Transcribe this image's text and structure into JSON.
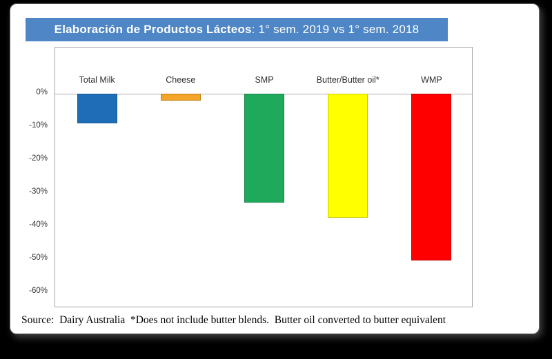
{
  "title": {
    "bold": "Elaboración de Productos Lácteos",
    "regular": ": 1° sem. 2019 vs 1° sem. 2018"
  },
  "source_note": "Source:  Dairy Australia  *Does not include butter blends.  Butter oil converted to butter equivalent",
  "colors": {
    "banner": "#4f86c6",
    "panel_bg": "#ffffff",
    "page_bg": "#000000"
  },
  "chart_data": {
    "type": "bar",
    "title": "Elaboración de Productos Lácteos: 1° sem. 2019 vs 1° sem. 2018",
    "categories": [
      "Total Milk",
      "Cheese",
      "SMP",
      "Butter/Butter oil*",
      "WMP"
    ],
    "values": [
      -9,
      -2,
      -33,
      -37.5,
      -50.5
    ],
    "value_format": "percent",
    "bar_colors": [
      "#1f6db6",
      "#f4a428",
      "#1fa95b",
      "#ffff00",
      "#ff0000"
    ],
    "bar_borders": [
      "#155a96",
      "#c07f10",
      "#12824a",
      "#c9c900",
      "#c00000"
    ],
    "xlabel": "",
    "ylabel": "",
    "ylim": [
      -60,
      0
    ],
    "yticks": [
      "0%",
      "-10%",
      "-20%",
      "-30%",
      "-40%",
      "-50%",
      "-60%"
    ],
    "ytick_values": [
      0,
      -10,
      -20,
      -30,
      -40,
      -50,
      -60
    ],
    "grid": false,
    "legend": false
  }
}
